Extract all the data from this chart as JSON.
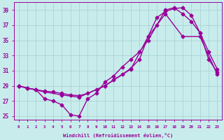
{
  "xlabel": "Windchill (Refroidissement éolien,°C)",
  "bg_color": "#c8ecec",
  "grid_color": "#aad4d4",
  "line_color": "#990099",
  "xlim": [
    -0.5,
    23.5
  ],
  "ylim": [
    24.5,
    40.0
  ],
  "yticks": [
    25,
    27,
    29,
    31,
    33,
    35,
    37,
    39
  ],
  "xticks": [
    0,
    1,
    2,
    3,
    4,
    5,
    6,
    7,
    8,
    9,
    10,
    11,
    12,
    13,
    14,
    15,
    16,
    17,
    18,
    19,
    20,
    21,
    22,
    23
  ],
  "series1_x": [
    0,
    1,
    2,
    3,
    4,
    5,
    6,
    7,
    8,
    9,
    10,
    11,
    12,
    13,
    14,
    15,
    16,
    17,
    18,
    19,
    20,
    21,
    22,
    23
  ],
  "series1_y": [
    29.0,
    28.7,
    28.5,
    27.3,
    27.0,
    26.5,
    25.2,
    25.0,
    27.3,
    28.0,
    29.5,
    30.3,
    31.5,
    32.5,
    33.5,
    35.0,
    37.0,
    39.0,
    39.3,
    38.5,
    37.5,
    36.0,
    32.5,
    30.8
  ],
  "series2_x": [
    0,
    1,
    2,
    3,
    4,
    5,
    6,
    7,
    8,
    9,
    10,
    11,
    12,
    13,
    14,
    15,
    16,
    17,
    18,
    19,
    20,
    21,
    22,
    23
  ],
  "series2_y": [
    29.0,
    28.7,
    28.5,
    28.3,
    28.2,
    28.0,
    27.8,
    27.7,
    28.0,
    28.5,
    29.0,
    29.8,
    30.5,
    31.3,
    32.5,
    35.5,
    38.0,
    38.8,
    39.2,
    39.3,
    38.3,
    36.0,
    33.5,
    31.2
  ],
  "series3_x": [
    0,
    1,
    3,
    5,
    7,
    10,
    13,
    15,
    17,
    19,
    21,
    23
  ],
  "series3_y": [
    29.0,
    28.7,
    28.2,
    27.8,
    27.5,
    29.0,
    31.2,
    35.5,
    38.5,
    35.5,
    35.5,
    30.5
  ],
  "marker": "D",
  "marker_size": 2.5,
  "line_width": 1.0
}
